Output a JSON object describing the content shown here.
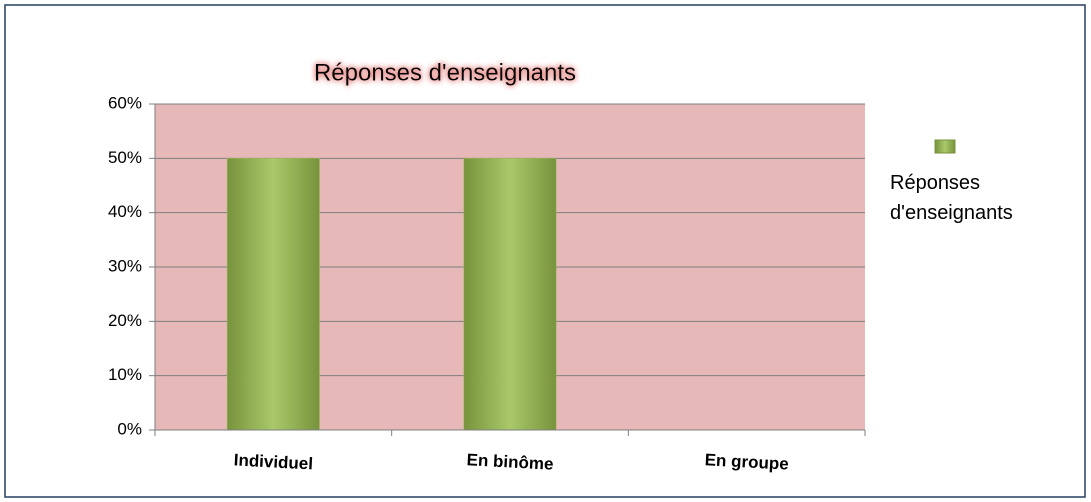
{
  "chart_data": {
    "type": "bar",
    "title": "Réponses d'enseignants",
    "categories": [
      "Individuel",
      "En binôme",
      "En groupe"
    ],
    "series": [
      {
        "name": "Réponses d'enseignants",
        "color": "#9bbb59",
        "values": [
          50,
          50,
          0
        ]
      }
    ],
    "ylim": [
      0,
      60
    ],
    "yticks": [
      {
        "value": 0,
        "label": "0%"
      },
      {
        "value": 10,
        "label": "10%"
      },
      {
        "value": 20,
        "label": "20%"
      },
      {
        "value": 30,
        "label": "30%"
      },
      {
        "value": 40,
        "label": "40%"
      },
      {
        "value": 50,
        "label": "50%"
      },
      {
        "value": 60,
        "label": "60%"
      }
    ],
    "grid": true,
    "legend": "right"
  }
}
